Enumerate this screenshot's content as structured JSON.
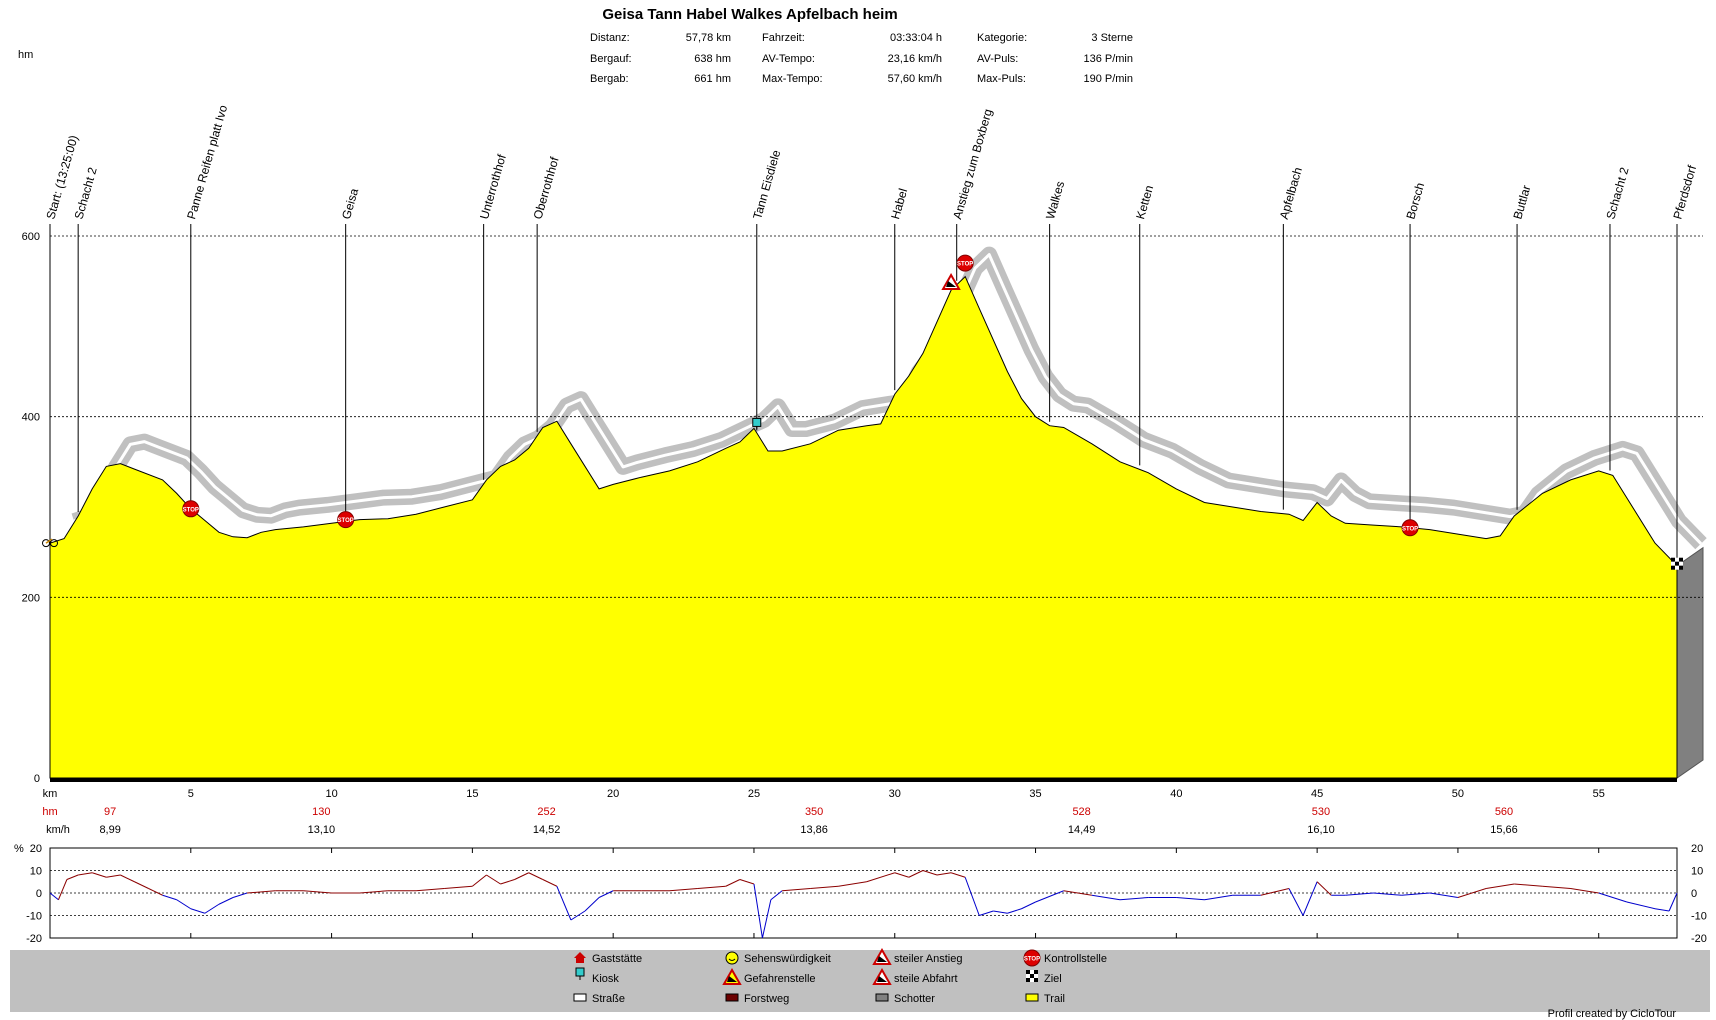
{
  "title": "Geisa Tann Habel Walkes Apfelbach heim",
  "stats": [
    {
      "label": "Distanz:",
      "value": "57,78 km"
    },
    {
      "label": "Fahrzeit:",
      "value": "03:33:04 h"
    },
    {
      "label": "Kategorie:",
      "value": "3 Sterne"
    },
    {
      "label": "Bergauf:",
      "value": "638 hm"
    },
    {
      "label": "AV-Tempo:",
      "value": "23,16 km/h"
    },
    {
      "label": "AV-Puls:",
      "value": "136 P/min"
    },
    {
      "label": "Bergab:",
      "value": "661 hm"
    },
    {
      "label": "Max-Tempo:",
      "value": "57,60 km/h"
    },
    {
      "label": "Max-Puls:",
      "value": "190 P/min"
    }
  ],
  "chart_data": [
    {
      "type": "area",
      "ylabel": "hm",
      "xlabel": "km",
      "xlim": [
        0,
        57.78
      ],
      "ylim": [
        0,
        600
      ],
      "x_ticks": [
        5,
        10,
        15,
        20,
        25,
        30,
        35,
        40,
        45,
        50,
        55
      ],
      "y_ticks": [
        0,
        200,
        400,
        600
      ],
      "grid": "horizontal dotted",
      "colors": {
        "fill": "#ffff00",
        "road_band": "#c0c0c0",
        "side": "#808080"
      },
      "profile": [
        [
          0,
          260
        ],
        [
          0.5,
          265
        ],
        [
          1,
          290
        ],
        [
          1.5,
          320
        ],
        [
          2,
          345
        ],
        [
          2.5,
          348
        ],
        [
          3,
          342
        ],
        [
          4,
          330
        ],
        [
          4.5,
          315
        ],
        [
          5,
          298
        ],
        [
          5.5,
          285
        ],
        [
          6,
          272
        ],
        [
          6.5,
          267
        ],
        [
          7,
          266
        ],
        [
          7.5,
          272
        ],
        [
          8,
          275
        ],
        [
          9,
          278
        ],
        [
          10,
          282
        ],
        [
          11,
          286
        ],
        [
          12,
          287
        ],
        [
          13,
          292
        ],
        [
          14,
          300
        ],
        [
          15,
          308
        ],
        [
          15.5,
          330
        ],
        [
          16,
          345
        ],
        [
          16.5,
          352
        ],
        [
          17,
          365
        ],
        [
          17.5,
          388
        ],
        [
          18,
          395
        ],
        [
          18.5,
          370
        ],
        [
          19.5,
          320
        ],
        [
          20,
          325
        ],
        [
          21,
          333
        ],
        [
          22,
          340
        ],
        [
          23,
          350
        ],
        [
          24,
          365
        ],
        [
          24.5,
          372
        ],
        [
          25,
          387
        ],
        [
          25.5,
          362
        ],
        [
          26,
          362
        ],
        [
          27,
          370
        ],
        [
          28,
          385
        ],
        [
          29,
          390
        ],
        [
          29.5,
          392
        ],
        [
          30,
          425
        ],
        [
          30.5,
          445
        ],
        [
          31,
          470
        ],
        [
          31.5,
          505
        ],
        [
          32,
          540
        ],
        [
          32.5,
          555
        ],
        [
          33,
          520
        ],
        [
          34,
          450
        ],
        [
          34.5,
          420
        ],
        [
          35,
          400
        ],
        [
          35.5,
          390
        ],
        [
          36,
          388
        ],
        [
          37,
          370
        ],
        [
          38,
          350
        ],
        [
          39,
          338
        ],
        [
          40,
          320
        ],
        [
          41,
          305
        ],
        [
          42,
          300
        ],
        [
          43,
          295
        ],
        [
          44,
          292
        ],
        [
          44.5,
          285
        ],
        [
          45,
          305
        ],
        [
          45.5,
          290
        ],
        [
          46,
          282
        ],
        [
          47,
          280
        ],
        [
          48,
          278
        ],
        [
          49,
          275
        ],
        [
          50,
          270
        ],
        [
          51,
          265
        ],
        [
          51.5,
          268
        ],
        [
          52,
          290
        ],
        [
          53,
          315
        ],
        [
          54,
          330
        ],
        [
          55,
          340
        ],
        [
          55.5,
          335
        ],
        [
          56,
          310
        ],
        [
          57,
          260
        ],
        [
          57.78,
          235
        ]
      ],
      "waypoints": [
        {
          "km": 0,
          "name": "Start: (13:25:00)"
        },
        {
          "km": 1,
          "name": "Schacht 2"
        },
        {
          "km": 5,
          "name": "Panne Reifen platt Ivo"
        },
        {
          "km": 10.5,
          "name": "Geisa"
        },
        {
          "km": 15.4,
          "name": "Unterrothhof"
        },
        {
          "km": 17.3,
          "name": "Oberrothhof"
        },
        {
          "km": 25.1,
          "name": "Tann Eisdiele"
        },
        {
          "km": 30,
          "name": "Habel"
        },
        {
          "km": 32.2,
          "name": "Anstieg zum Boxberg"
        },
        {
          "km": 35.5,
          "name": "Walkes"
        },
        {
          "km": 38.7,
          "name": "Ketten"
        },
        {
          "km": 43.8,
          "name": "Apfelbach"
        },
        {
          "km": 48.3,
          "name": "Borsch"
        },
        {
          "km": 52.1,
          "name": "Buttlar"
        },
        {
          "km": 55.4,
          "name": "Schacht 2"
        },
        {
          "km": 57.78,
          "name": "Pferdsdorf"
        }
      ],
      "markers": [
        {
          "km": 0,
          "elev": 260,
          "type": "start-bike-icon"
        },
        {
          "km": 5,
          "elev": 298,
          "type": "stop-icon"
        },
        {
          "km": 10.5,
          "elev": 286,
          "type": "stop-icon"
        },
        {
          "km": 25.1,
          "elev": 387,
          "type": "kiosk-icon"
        },
        {
          "km": 32.0,
          "elev": 548,
          "type": "steep-ascent-icon"
        },
        {
          "km": 32.5,
          "elev": 570,
          "type": "stop-icon"
        },
        {
          "km": 48.3,
          "elev": 277,
          "type": "stop-icon"
        },
        {
          "km": 57.78,
          "elev": 235,
          "type": "finish-flag-icon"
        }
      ],
      "hm_row": {
        "label": "hm",
        "values": [
          {
            "km": 1,
            "text": "97"
          },
          {
            "km": 8.5,
            "text": "130"
          },
          {
            "km": 16.5,
            "text": "252"
          },
          {
            "km": 26,
            "text": "350"
          },
          {
            "km": 35.5,
            "text": "528"
          },
          {
            "km": 44,
            "text": "530"
          },
          {
            "km": 50.5,
            "text": "560"
          }
        ]
      },
      "kmh_row": {
        "label": "km/h",
        "values": [
          {
            "km": 1,
            "text": "8,99"
          },
          {
            "km": 8.5,
            "text": "13,10"
          },
          {
            "km": 16.5,
            "text": "14,52"
          },
          {
            "km": 26,
            "text": "13,86"
          },
          {
            "km": 35.5,
            "text": "14,49"
          },
          {
            "km": 44,
            "text": "16,10"
          },
          {
            "km": 50.5,
            "text": "15,66"
          }
        ]
      }
    },
    {
      "type": "line",
      "ylabel": "%",
      "ylim": [
        -20,
        20
      ],
      "y_ticks": [
        -20,
        -10,
        0,
        10,
        20
      ],
      "colors": {
        "positive": "#8b0000",
        "negative": "#0000cc"
      },
      "gradient": [
        [
          0,
          0
        ],
        [
          0.3,
          -3
        ],
        [
          0.6,
          6
        ],
        [
          1,
          8
        ],
        [
          1.5,
          9
        ],
        [
          2,
          7
        ],
        [
          2.5,
          8
        ],
        [
          3,
          5
        ],
        [
          3.5,
          2
        ],
        [
          4,
          -1
        ],
        [
          4.5,
          -3
        ],
        [
          5,
          -7
        ],
        [
          5.5,
          -9
        ],
        [
          6,
          -5
        ],
        [
          6.5,
          -2
        ],
        [
          7,
          0
        ],
        [
          8,
          1
        ],
        [
          9,
          1
        ],
        [
          10,
          0
        ],
        [
          11,
          0
        ],
        [
          12,
          1
        ],
        [
          13,
          1
        ],
        [
          14,
          2
        ],
        [
          15,
          3
        ],
        [
          15.5,
          8
        ],
        [
          16,
          4
        ],
        [
          16.5,
          6
        ],
        [
          17,
          9
        ],
        [
          17.5,
          6
        ],
        [
          18,
          3
        ],
        [
          18.5,
          -12
        ],
        [
          19,
          -8
        ],
        [
          19.5,
          -2
        ],
        [
          20,
          1
        ],
        [
          21,
          1
        ],
        [
          22,
          1
        ],
        [
          23,
          2
        ],
        [
          24,
          3
        ],
        [
          24.5,
          6
        ],
        [
          25,
          4
        ],
        [
          25.3,
          -20
        ],
        [
          25.6,
          -3
        ],
        [
          26,
          1
        ],
        [
          27,
          2
        ],
        [
          28,
          3
        ],
        [
          29,
          5
        ],
        [
          30,
          9
        ],
        [
          30.5,
          7
        ],
        [
          31,
          10
        ],
        [
          31.5,
          8
        ],
        [
          32,
          9
        ],
        [
          32.5,
          7
        ],
        [
          33,
          -10
        ],
        [
          33.5,
          -8
        ],
        [
          34,
          -9
        ],
        [
          34.5,
          -7
        ],
        [
          35,
          -4
        ],
        [
          36,
          1
        ],
        [
          37,
          -1
        ],
        [
          38,
          -3
        ],
        [
          39,
          -2
        ],
        [
          40,
          -2
        ],
        [
          41,
          -3
        ],
        [
          42,
          -1
        ],
        [
          43,
          -1
        ],
        [
          44,
          2
        ],
        [
          44.5,
          -10
        ],
        [
          45,
          5
        ],
        [
          45.5,
          -1
        ],
        [
          46,
          -1
        ],
        [
          47,
          0
        ],
        [
          48,
          -1
        ],
        [
          49,
          0
        ],
        [
          50,
          -2
        ],
        [
          51,
          2
        ],
        [
          52,
          4
        ],
        [
          53,
          3
        ],
        [
          54,
          2
        ],
        [
          55,
          0
        ],
        [
          56,
          -4
        ],
        [
          57,
          -7
        ],
        [
          57.5,
          -8
        ],
        [
          57.78,
          0
        ]
      ]
    }
  ],
  "legend": [
    {
      "label": "Gaststätte",
      "icon": "house-icon",
      "color": "#cc0000"
    },
    {
      "label": "Sehenswürdigkeit",
      "icon": "smiley-icon",
      "color": "#ffff00"
    },
    {
      "label": "steiler Anstieg",
      "icon": "steep-ascent-icon",
      "color": "#cc0000"
    },
    {
      "label": "Kontrollstelle",
      "icon": "stop-icon",
      "color": "#cc0000"
    },
    {
      "label": "Kiosk",
      "icon": "kiosk-icon",
      "color": "#33cccc"
    },
    {
      "label": "Gefahrenstelle",
      "icon": "warning-icon",
      "color": "#ffff00"
    },
    {
      "label": "steile Abfahrt",
      "icon": "steep-descent-icon",
      "color": "#cc0000"
    },
    {
      "label": "Ziel",
      "icon": "finish-flag-icon",
      "color": "#000000"
    },
    {
      "label": "Straße",
      "icon": "road-swatch",
      "color": "#ffffff"
    },
    {
      "label": "Forstweg",
      "icon": "forest-swatch",
      "color": "#6b0000"
    },
    {
      "label": "Schotter",
      "icon": "gravel-swatch",
      "color": "#808080"
    },
    {
      "label": "Trail",
      "icon": "trail-swatch",
      "color": "#ffff00"
    }
  ],
  "footer": "Profil created by CicloTour"
}
